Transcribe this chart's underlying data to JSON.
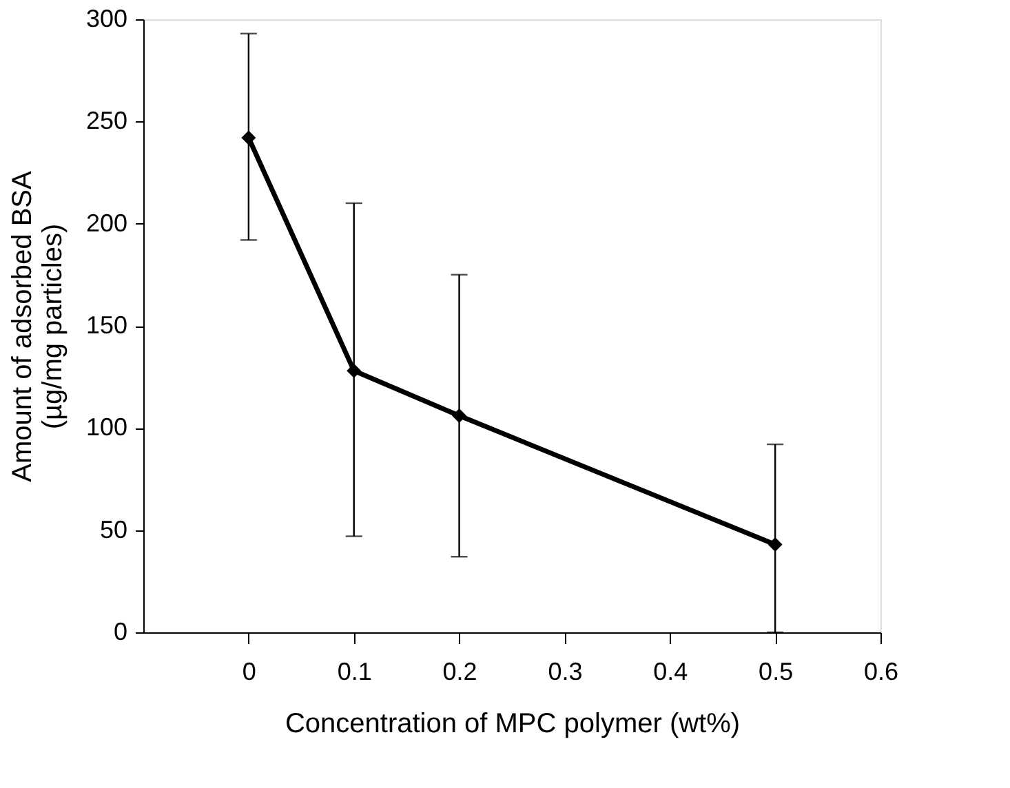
{
  "chart_data": {
    "type": "line",
    "xlabel": "Concentration of MPC polymer (wt%)",
    "ylabel": "Amount of adsorbed BSA\n(µg/mg particles)",
    "x": [
      0,
      0.1,
      0.2,
      0.5
    ],
    "values": [
      242,
      128,
      106,
      43
    ],
    "errors": [
      [
        192,
        293
      ],
      [
        47,
        210
      ],
      [
        37,
        175
      ],
      [
        0,
        92
      ]
    ],
    "color": "#000000",
    "marker": "diamond",
    "line_style": "solid",
    "xlim": [
      -0.1,
      0.6
    ],
    "xticks": [
      0,
      0.1,
      0.2,
      0.3,
      0.4,
      0.5,
      0.6
    ],
    "ylim": [
      0,
      300
    ],
    "yticks": [
      0,
      50,
      100,
      150,
      200,
      250,
      300
    ],
    "grid": false
  }
}
